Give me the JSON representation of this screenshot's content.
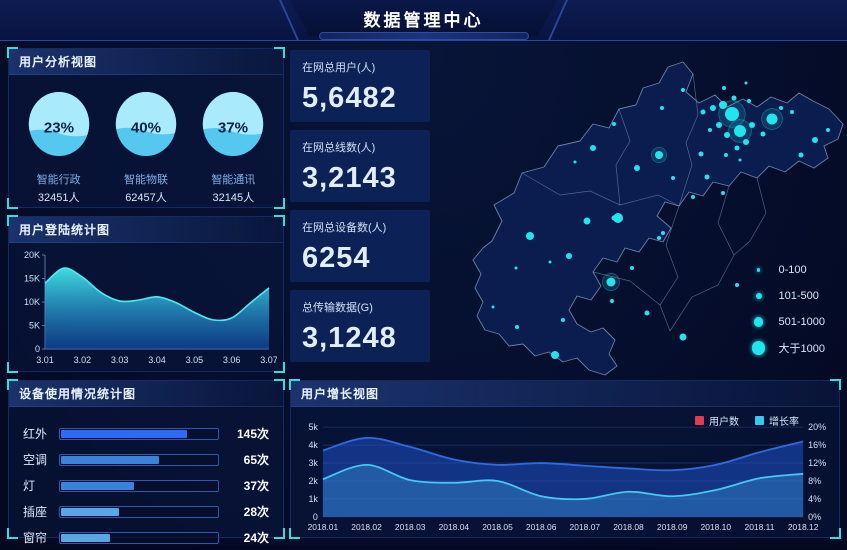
{
  "header": {
    "title": "数据管理中心"
  },
  "panels": {
    "user_analysis": {
      "title": "用户分析视图"
    },
    "login_stats": {
      "title": "用户登陆统计图"
    },
    "device_usage": {
      "title": "设备使用情况统计图"
    },
    "user_growth": {
      "title": "用户增长视图"
    }
  },
  "stats": {
    "cards": [
      {
        "label": "在网总用户(人)",
        "value": "5,6482"
      },
      {
        "label": "在网总线数(人)",
        "value": "3,2143"
      },
      {
        "label": "在网总设备数(人)",
        "value": "6254"
      },
      {
        "label": "总传输数据(G)",
        "value": "3,1248"
      }
    ]
  },
  "colors": {
    "accent_cyan": "#2de0dc",
    "dot_cyan": "#21e4ed",
    "panel_border": "#142a66",
    "gauge_light": "#a9ebfc",
    "gauge_dark": "#54c8ee"
  },
  "chart_data": [
    {
      "id": "user-analysis-gauges",
      "type": "pie",
      "title": "用户分析视图",
      "items": [
        {
          "label": "智能行政",
          "percent": 23,
          "percent_label": "23%",
          "count": "32451人"
        },
        {
          "label": "智能物联",
          "percent": 40,
          "percent_label": "40%",
          "count": "62457人"
        },
        {
          "label": "智能通讯",
          "percent": 37,
          "percent_label": "37%",
          "count": "32145人"
        }
      ]
    },
    {
      "id": "login-statistics",
      "type": "area",
      "title": "用户登陆统计图",
      "xlabel": "",
      "ylabel": "",
      "ylim": [
        0,
        20000
      ],
      "yticks": [
        "0",
        "5K",
        "10K",
        "15K",
        "20K"
      ],
      "xticks": [
        "3.01",
        "3.02",
        "3.03",
        "3.04",
        "3.05",
        "3.06",
        "3.07"
      ],
      "values_k": [
        14,
        17.2,
        15.3,
        12,
        10.2,
        10.4,
        11.1,
        9.9,
        7.8,
        6.2,
        6.6,
        9.8,
        13
      ],
      "legend_position": "none",
      "grid": false
    },
    {
      "id": "device-usage",
      "type": "bar",
      "title": "设备使用情况统计图",
      "categories": [
        "红外",
        "空调",
        "灯",
        "插座",
        "窗帘"
      ],
      "values": [
        145,
        65,
        37,
        28,
        24
      ],
      "unit": "次",
      "value_labels": [
        "145次",
        "65次",
        "37次",
        "28次",
        "24次"
      ],
      "bar_pct": [
        80,
        62,
        46,
        37,
        31
      ],
      "bar_colors": [
        "#2e6bf2",
        "#3b82d9",
        "#3b82d9",
        "#58a7e2",
        "#58a7e2"
      ]
    },
    {
      "id": "user-growth",
      "type": "area",
      "title": "用户增长视图",
      "categories": [
        "2018.01",
        "2018.02",
        "2018.03",
        "2018.04",
        "2018.05",
        "2018.06",
        "2018.07",
        "2018.08",
        "2018.09",
        "2018.10",
        "2018.11",
        "2018.12"
      ],
      "left_ylim_k": [
        0,
        5
      ],
      "left_ticks": [
        "0",
        "1k",
        "2k",
        "3k",
        "4k",
        "5k"
      ],
      "right_ylim_pct": [
        0,
        20
      ],
      "right_ticks": [
        "0%",
        "4%",
        "8%",
        "12%",
        "16%",
        "20%"
      ],
      "legend": [
        {
          "label": "用户数",
          "color": "#e03b4e"
        },
        {
          "label": "增长率",
          "color": "#35c9ee"
        }
      ],
      "series": [
        {
          "name": "用户数",
          "axis": "left",
          "draw_color": "#2f6bdf",
          "fill": "rgba(32,86,214,0.50)",
          "values_k": [
            3.7,
            4.4,
            3.9,
            3.2,
            2.9,
            3.0,
            2.85,
            2.7,
            2.6,
            2.9,
            3.6,
            4.2
          ]
        },
        {
          "name": "增长率",
          "axis": "right",
          "draw_color": "#46c8f1",
          "fill": "rgba(70,180,240,0.30)",
          "values_pct": [
            8.4,
            11.6,
            8.2,
            7.6,
            8.0,
            4.6,
            4.0,
            5.6,
            4.6,
            6.0,
            8.6,
            9.6
          ]
        }
      ],
      "legend_position": "top-right",
      "grid": true
    },
    {
      "id": "map-distribution",
      "type": "scatter",
      "legend": [
        {
          "label": "0-100",
          "size": 1.6
        },
        {
          "label": "101-500",
          "size": 3.0
        },
        {
          "label": "501-1000",
          "size": 4.6
        },
        {
          "label": "大于1000",
          "size": 6.6
        }
      ],
      "points": [
        [
          302,
          69,
          7,
          1
        ],
        [
          310,
          86,
          6,
          1
        ],
        [
          342,
          74,
          5.5,
          1
        ],
        [
          293,
          60,
          4
        ],
        [
          283,
          63,
          3
        ],
        [
          273,
          67,
          2.5
        ],
        [
          289,
          80,
          3
        ],
        [
          297,
          90,
          3
        ],
        [
          307,
          103,
          2.5
        ],
        [
          316,
          97,
          3
        ],
        [
          322,
          80,
          3
        ],
        [
          333,
          89,
          2.5
        ],
        [
          351,
          63,
          2
        ],
        [
          362,
          67,
          2
        ],
        [
          319,
          56,
          2
        ],
        [
          304,
          53,
          2.5
        ],
        [
          294,
          43,
          2
        ],
        [
          316,
          38,
          1.5
        ],
        [
          280,
          85,
          2
        ],
        [
          271,
          109,
          2.5
        ],
        [
          296,
          110,
          2
        ],
        [
          310,
          115,
          1.5
        ],
        [
          253,
          45,
          2
        ],
        [
          232,
          63,
          2
        ],
        [
          229,
          110,
          4,
          1
        ],
        [
          207,
          123,
          3
        ],
        [
          184,
          79,
          2
        ],
        [
          163,
          103,
          3
        ],
        [
          145,
          117,
          1.5
        ],
        [
          277,
          132,
          2.5
        ],
        [
          293,
          148,
          2
        ],
        [
          243,
          133,
          2
        ],
        [
          263,
          152,
          2
        ],
        [
          184,
          173,
          2.5
        ],
        [
          233,
          188,
          2
        ],
        [
          100,
          191,
          4
        ],
        [
          188,
          173,
          5
        ],
        [
          157,
          176,
          3.5
        ],
        [
          229,
          193,
          2
        ],
        [
          139,
          211,
          3
        ],
        [
          86,
          223,
          1.5
        ],
        [
          120,
          217,
          1.5
        ],
        [
          202,
          223,
          2
        ],
        [
          181,
          237,
          4.5,
          1
        ],
        [
          182,
          256,
          2
        ],
        [
          217,
          268,
          2.5
        ],
        [
          133,
          275,
          2
        ],
        [
          87,
          282,
          2
        ],
        [
          63,
          262,
          1.5
        ],
        [
          125,
          310,
          4
        ],
        [
          253,
          292,
          3.5
        ],
        [
          307,
          240,
          2
        ],
        [
          371,
          110,
          2.5
        ],
        [
          385,
          95,
          3
        ],
        [
          398,
          85,
          2
        ]
      ]
    }
  ]
}
